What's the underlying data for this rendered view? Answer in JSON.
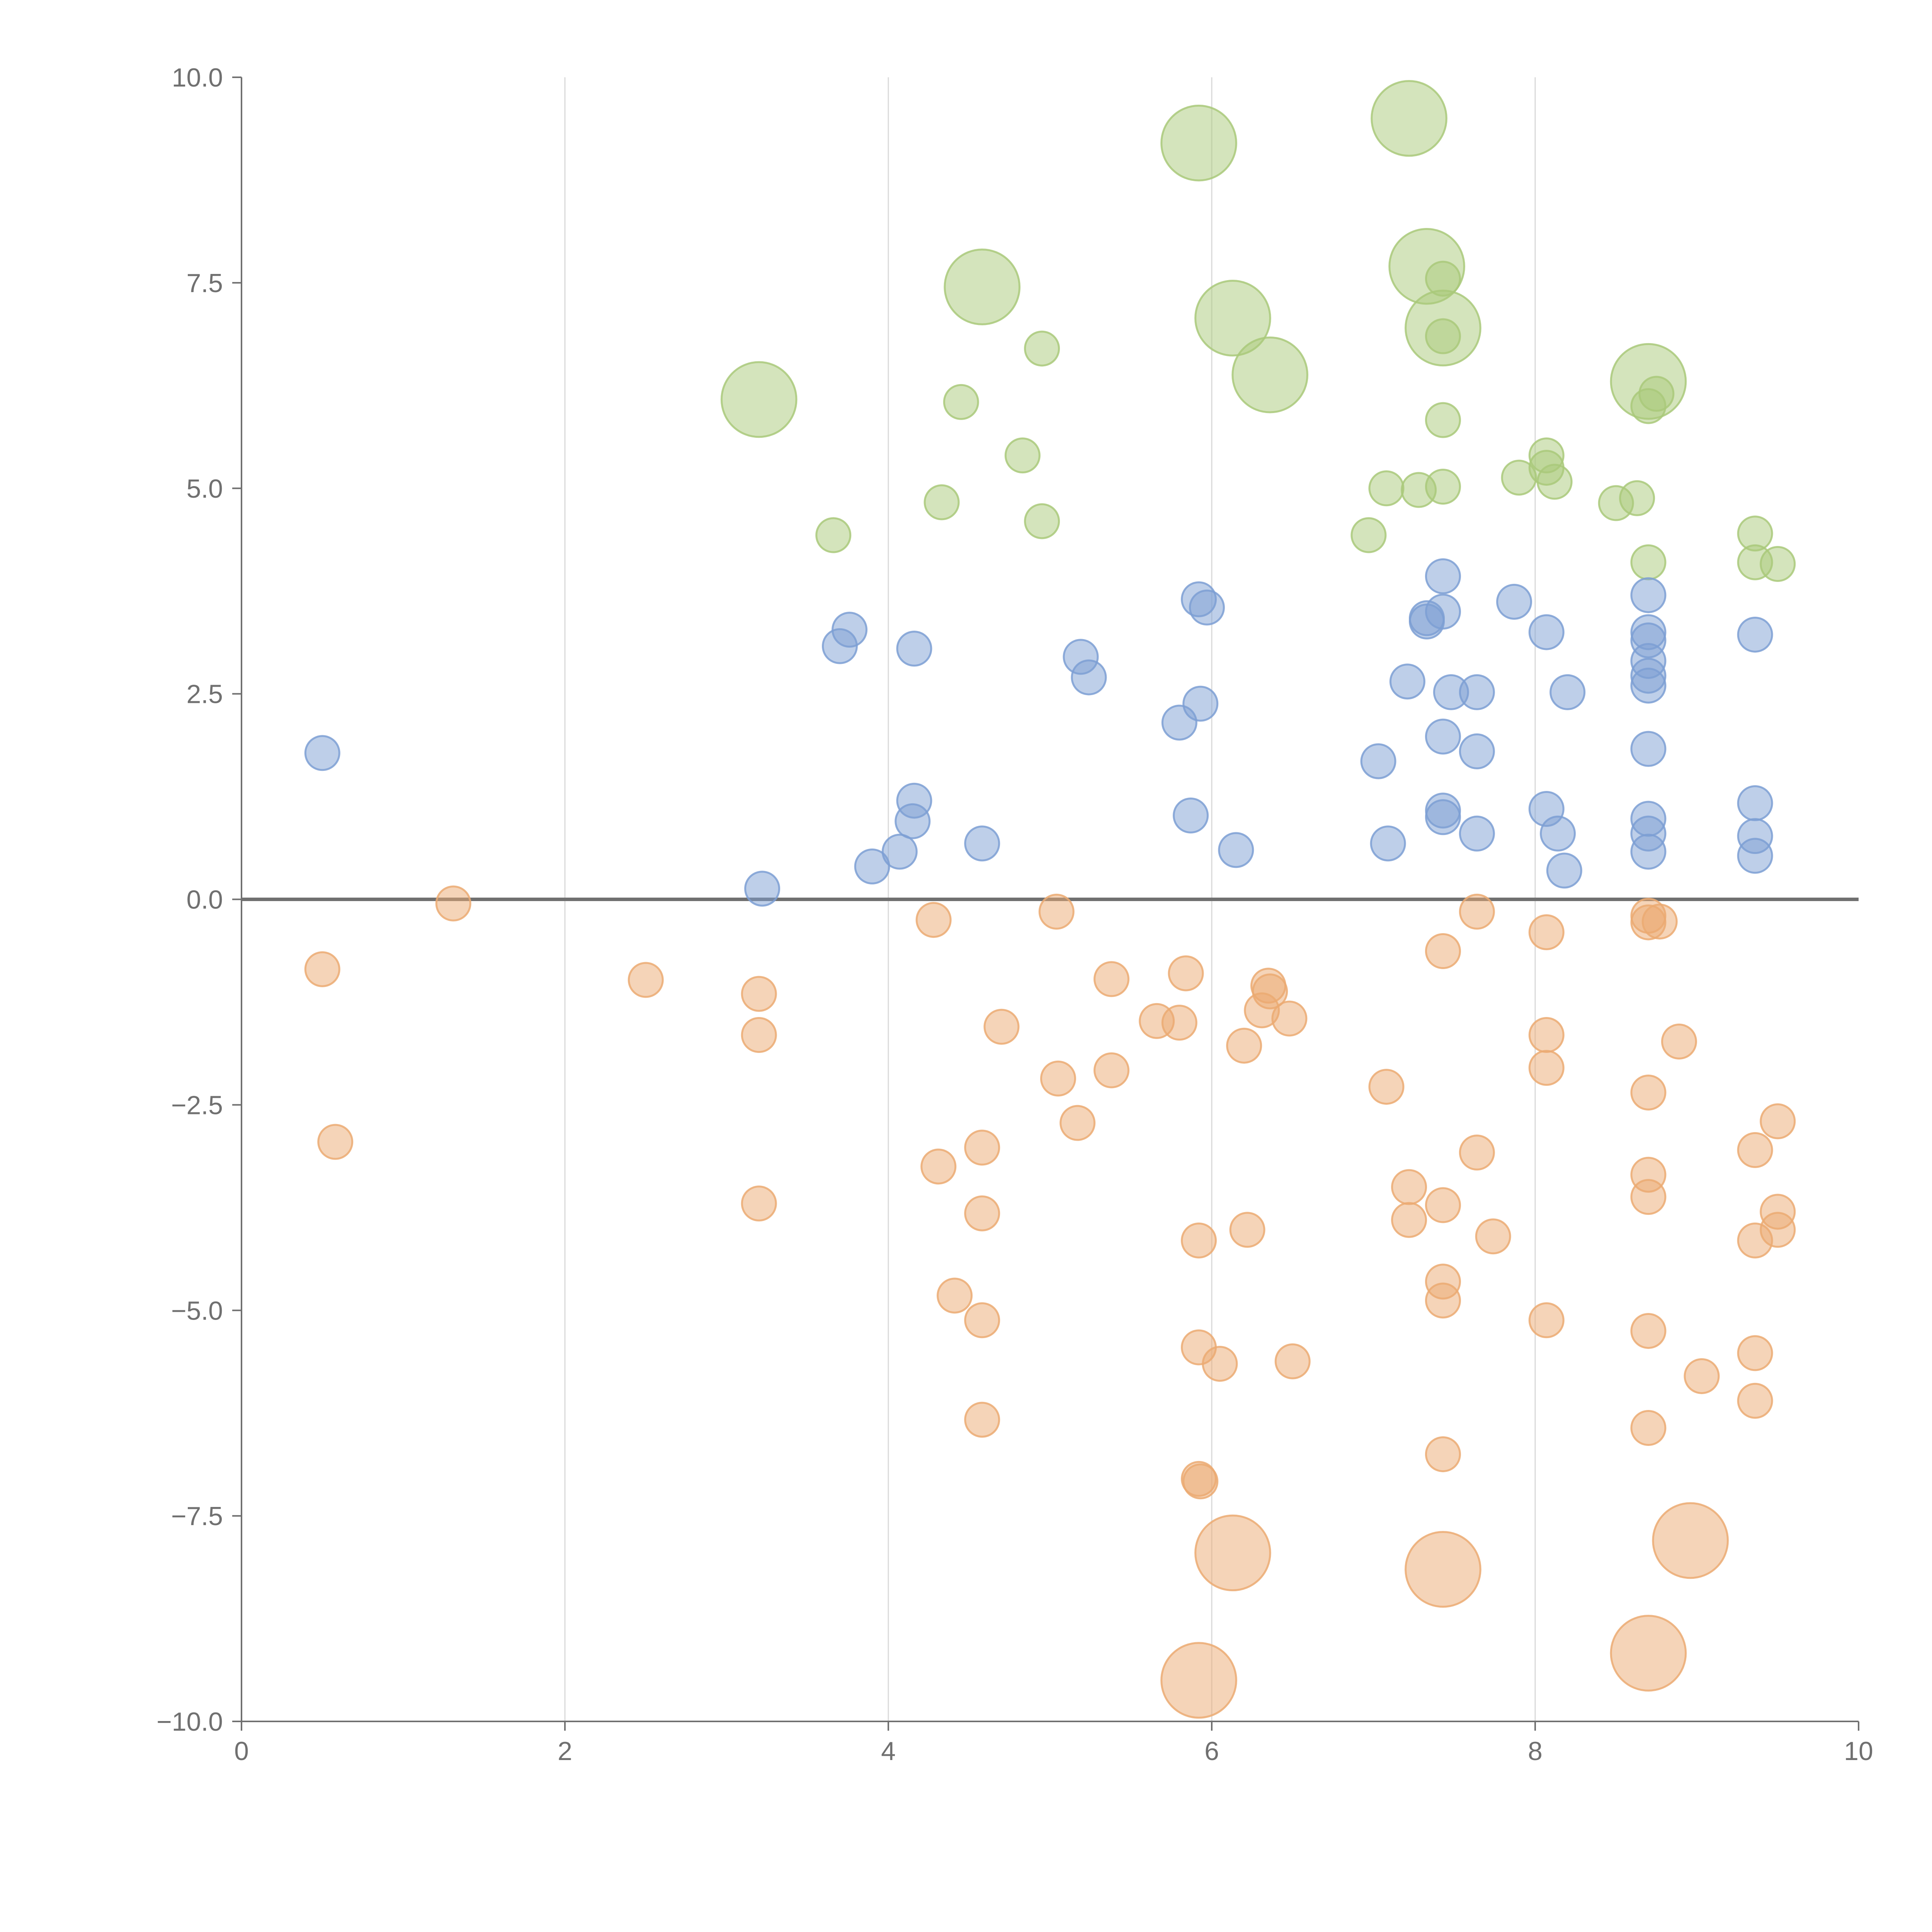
{
  "chart_data": {
    "type": "scatter",
    "title": "",
    "xlabel": "",
    "ylabel": "",
    "xlim": [
      0,
      10
    ],
    "ylim": [
      -10,
      10
    ],
    "x_ticks": [
      0,
      2,
      4,
      6,
      8,
      10
    ],
    "x_tick_labels": [
      "0",
      "2",
      "4",
      "6",
      "8",
      "10"
    ],
    "y_ticks": [
      10,
      7.5,
      5,
      2.5,
      0,
      -2.5,
      -5,
      -7.5,
      -10
    ],
    "y_tick_labels": [
      "10.0",
      "7.5",
      "5.0",
      "2.5",
      "0.0",
      "−2.5",
      "−5.0",
      "−7.5",
      "−10.0"
    ],
    "grid_x": true,
    "grid_y": false,
    "zero_line": true,
    "legend": "none",
    "series": [
      {
        "name": "green",
        "color": "#a9c97a",
        "points": [
          [
            7.22,
            9.5,
            2.2
          ],
          [
            5.92,
            9.2,
            2.2
          ],
          [
            7.33,
            7.7,
            2.2
          ],
          [
            4.58,
            7.45,
            2.2
          ],
          [
            6.13,
            7.07,
            2.2
          ],
          [
            7.43,
            6.95,
            2.2
          ],
          [
            6.36,
            6.38,
            2.2
          ],
          [
            8.7,
            6.3,
            2.2
          ],
          [
            3.2,
            6.08,
            2.2
          ],
          [
            7.43,
            7.55,
            1
          ],
          [
            7.43,
            6.85,
            1
          ],
          [
            4.95,
            6.7,
            1
          ],
          [
            4.45,
            6.05,
            1
          ],
          [
            8.75,
            6.15,
            1
          ],
          [
            8.7,
            6.0,
            1
          ],
          [
            7.43,
            5.83,
            1
          ],
          [
            4.83,
            5.4,
            1
          ],
          [
            8.07,
            5.4,
            1
          ],
          [
            8.07,
            5.25,
            1
          ],
          [
            7.9,
            5.13,
            1
          ],
          [
            8.12,
            5.08,
            1
          ],
          [
            7.08,
            5.0,
            1
          ],
          [
            7.28,
            4.98,
            1
          ],
          [
            7.43,
            5.02,
            1
          ],
          [
            8.63,
            4.88,
            1
          ],
          [
            8.5,
            4.82,
            1
          ],
          [
            4.33,
            4.83,
            1
          ],
          [
            4.95,
            4.6,
            1
          ],
          [
            3.66,
            4.43,
            1
          ],
          [
            6.97,
            4.43,
            1
          ],
          [
            9.36,
            4.45,
            1
          ],
          [
            8.7,
            4.1,
            1
          ],
          [
            9.36,
            4.1,
            1
          ],
          [
            9.5,
            4.08,
            1
          ]
        ]
      },
      {
        "name": "blue",
        "color": "#7d9fd3",
        "points": [
          [
            0.5,
            1.78,
            1
          ],
          [
            3.22,
            0.13,
            1
          ],
          [
            3.7,
            3.08,
            1
          ],
          [
            3.76,
            3.28,
            1
          ],
          [
            3.9,
            0.4,
            1
          ],
          [
            4.07,
            0.58,
            1
          ],
          [
            4.16,
            1.2,
            1
          ],
          [
            4.15,
            0.95,
            1
          ],
          [
            4.16,
            3.05,
            1
          ],
          [
            4.58,
            0.68,
            1
          ],
          [
            5.19,
            2.95,
            1
          ],
          [
            5.24,
            2.7,
            1
          ],
          [
            5.8,
            2.15,
            1
          ],
          [
            5.87,
            1.02,
            1
          ],
          [
            5.92,
            3.65,
            1
          ],
          [
            5.97,
            3.55,
            1
          ],
          [
            5.93,
            2.38,
            1
          ],
          [
            6.15,
            0.6,
            1
          ],
          [
            7.03,
            1.68,
            1
          ],
          [
            7.09,
            0.68,
            1
          ],
          [
            7.21,
            2.65,
            1
          ],
          [
            7.33,
            3.38,
            1
          ],
          [
            7.33,
            3.42,
            1
          ],
          [
            7.43,
            3.93,
            1
          ],
          [
            7.43,
            3.5,
            1
          ],
          [
            7.48,
            2.52,
            1
          ],
          [
            7.43,
            1.98,
            1
          ],
          [
            7.43,
            1.08,
            1
          ],
          [
            7.43,
            1.0,
            1
          ],
          [
            7.64,
            2.52,
            1
          ],
          [
            7.64,
            1.8,
            1
          ],
          [
            7.64,
            0.8,
            1
          ],
          [
            7.87,
            3.62,
            1
          ],
          [
            8.07,
            3.25,
            1
          ],
          [
            8.07,
            1.1,
            1
          ],
          [
            8.14,
            0.8,
            1
          ],
          [
            8.2,
            2.52,
            1
          ],
          [
            8.18,
            0.35,
            1
          ],
          [
            8.7,
            3.7,
            1
          ],
          [
            8.7,
            3.25,
            1
          ],
          [
            8.7,
            3.15,
            1
          ],
          [
            8.7,
            2.9,
            1
          ],
          [
            8.7,
            2.72,
            1
          ],
          [
            8.7,
            2.6,
            1
          ],
          [
            8.7,
            1.83,
            1
          ],
          [
            8.7,
            0.98,
            1
          ],
          [
            8.7,
            0.8,
            1
          ],
          [
            8.7,
            0.58,
            1
          ],
          [
            9.36,
            3.22,
            1
          ],
          [
            9.36,
            1.17,
            1
          ],
          [
            9.36,
            0.77,
            1
          ],
          [
            9.36,
            0.53,
            1
          ]
        ]
      },
      {
        "name": "orange",
        "color": "#ebaa72",
        "points": [
          [
            1.31,
            -0.05,
            1
          ],
          [
            0.5,
            -0.85,
            1
          ],
          [
            2.5,
            -0.98,
            1
          ],
          [
            0.58,
            -2.95,
            1
          ],
          [
            3.2,
            -1.15,
            1
          ],
          [
            3.2,
            -1.65,
            1
          ],
          [
            3.2,
            -3.7,
            1
          ],
          [
            4.28,
            -0.25,
            1
          ],
          [
            5.04,
            -0.15,
            1
          ],
          [
            4.7,
            -1.55,
            1
          ],
          [
            5.05,
            -2.18,
            1
          ],
          [
            5.17,
            -2.72,
            1
          ],
          [
            5.38,
            -0.97,
            1
          ],
          [
            5.38,
            -2.08,
            1
          ],
          [
            4.31,
            -3.25,
            1
          ],
          [
            4.58,
            -3.02,
            1
          ],
          [
            4.58,
            -3.82,
            1
          ],
          [
            4.41,
            -4.82,
            1
          ],
          [
            4.58,
            -5.12,
            1
          ],
          [
            4.58,
            -6.33,
            1
          ],
          [
            5.84,
            -0.9,
            1
          ],
          [
            5.66,
            -1.48,
            1
          ],
          [
            5.8,
            -1.5,
            1
          ],
          [
            6.35,
            -1.05,
            1
          ],
          [
            6.36,
            -1.12,
            1
          ],
          [
            6.31,
            -1.35,
            1
          ],
          [
            6.48,
            -1.45,
            1
          ],
          [
            6.2,
            -1.78,
            1
          ],
          [
            5.92,
            -4.15,
            1
          ],
          [
            6.22,
            -4.02,
            1
          ],
          [
            5.92,
            -5.45,
            1
          ],
          [
            6.05,
            -5.65,
            1
          ],
          [
            6.5,
            -5.62,
            1
          ],
          [
            5.92,
            -7.05,
            1
          ],
          [
            5.93,
            -7.08,
            1
          ],
          [
            7.43,
            -0.63,
            1
          ],
          [
            7.64,
            -0.15,
            1
          ],
          [
            8.07,
            -0.4,
            1
          ],
          [
            7.08,
            -2.28,
            1
          ],
          [
            7.22,
            -3.5,
            1
          ],
          [
            7.22,
            -3.9,
            1
          ],
          [
            7.43,
            -3.72,
            1
          ],
          [
            7.64,
            -3.08,
            1
          ],
          [
            7.74,
            -4.1,
            1
          ],
          [
            7.43,
            -4.65,
            1
          ],
          [
            7.43,
            -4.88,
            1
          ],
          [
            7.43,
            -6.75,
            1
          ],
          [
            8.07,
            -1.65,
            1
          ],
          [
            8.07,
            -2.05,
            1
          ],
          [
            8.07,
            -5.12,
            1
          ],
          [
            8.7,
            -0.2,
            1
          ],
          [
            8.7,
            -0.28,
            1
          ],
          [
            8.77,
            -0.27,
            1
          ],
          [
            8.7,
            -2.35,
            1
          ],
          [
            8.89,
            -1.73,
            1
          ],
          [
            8.7,
            -3.35,
            1
          ],
          [
            8.7,
            -3.62,
            1
          ],
          [
            8.7,
            -5.25,
            1
          ],
          [
            8.7,
            -6.43,
            1
          ],
          [
            9.03,
            -5.8,
            1
          ],
          [
            9.36,
            -3.05,
            1
          ],
          [
            9.36,
            -4.15,
            1
          ],
          [
            9.36,
            -5.52,
            1
          ],
          [
            9.36,
            -6.1,
            1
          ],
          [
            9.5,
            -2.7,
            1
          ],
          [
            9.5,
            -3.8,
            1
          ],
          [
            9.5,
            -4.02,
            1
          ],
          [
            6.13,
            -7.95,
            2.2
          ],
          [
            7.43,
            -8.15,
            2.2
          ],
          [
            8.96,
            -7.8,
            2.2
          ],
          [
            8.7,
            -9.17,
            2.2
          ],
          [
            5.92,
            -9.5,
            2.2
          ]
        ]
      }
    ]
  }
}
